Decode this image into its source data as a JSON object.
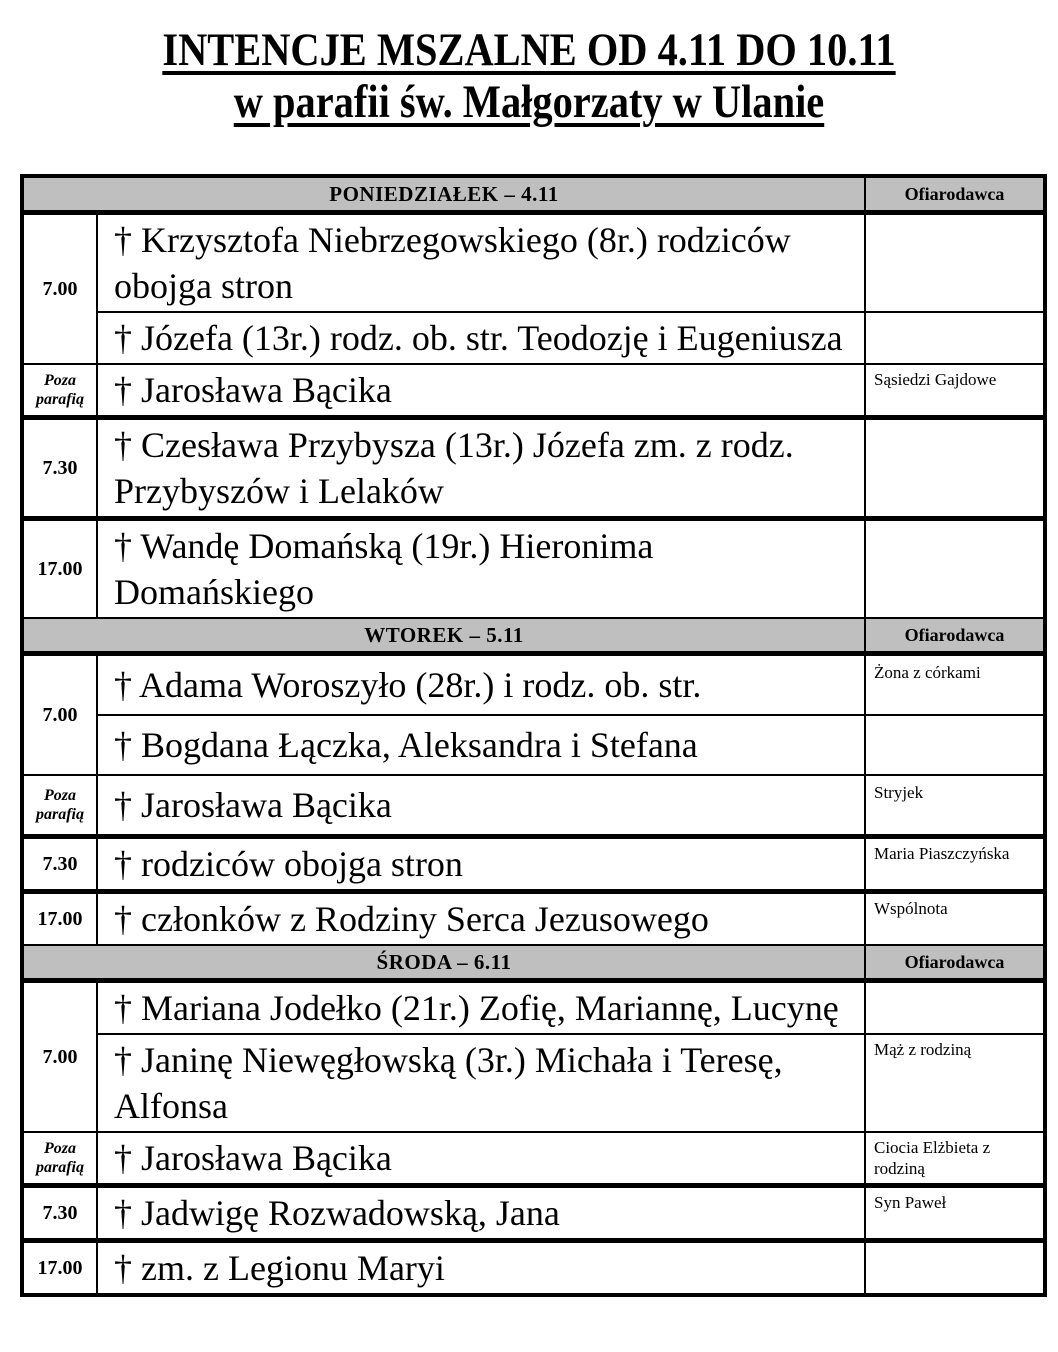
{
  "colors": {
    "header_bg": "#bfbfbf",
    "text": "#000000",
    "border": "#000000"
  },
  "title": {
    "line1": "INTENCJE MSZALNE OD 4.11 DO 10.11",
    "line2": "w parafii św. Małgorzaty w Ulanie"
  },
  "table": {
    "days": [
      {
        "label": "PONIEDZIAŁEK – 4.11",
        "donor_header": "Ofiarodawca",
        "rows": [
          {
            "time": "7.00",
            "intention": "† Krzysztofa Niebrzegowskiego (8r.) rodziców obojga stron",
            "donor": ""
          },
          {
            "intention": "† Józefa (13r.) rodz. ob. str. Teodozję i Eugeniusza",
            "donor": ""
          },
          {
            "time": "Poza parafią",
            "intention": "† Jarosława Bącika",
            "donor": "Sąsiedzi Gajdowe"
          },
          {
            "time": "7.30",
            "intention": "† Czesława Przybysza (13r.) Józefa zm. z rodz. Przybyszów i Lelaków",
            "donor": ""
          },
          {
            "time": "17.00",
            "intention": "† Wandę Domańską (19r.) Hieronima Domańskiego",
            "donor": ""
          }
        ]
      },
      {
        "label": "WTOREK – 5.11",
        "donor_header": "Ofiarodawca",
        "rows": [
          {
            "time": "7.00",
            "intention": "† Adama Woroszyło (28r.) i rodz. ob. str.",
            "donor": "Żona z córkami"
          },
          {
            "intention": "† Bogdana Łączka, Aleksandra i Stefana",
            "donor": ""
          },
          {
            "time": "Poza parafią",
            "intention": "† Jarosława Bącika",
            "donor": "Stryjek"
          },
          {
            "time": "7.30",
            "intention": "† rodziców obojga stron",
            "donor": "Maria Piaszczyńska"
          },
          {
            "time": "17.00",
            "intention": "† członków z Rodziny Serca Jezusowego",
            "donor": "Wspólnota"
          }
        ]
      },
      {
        "label": "ŚRODA – 6.11",
        "donor_header": "Ofiarodawca",
        "rows": [
          {
            "time": "7.00",
            "intention": "† Mariana Jodełko (21r.) Zofię, Mariannę, Lucynę",
            "donor": ""
          },
          {
            "intention": "† Janinę Niewęgłowską (3r.) Michała i Teresę, Alfonsa",
            "donor": "Mąż z rodziną"
          },
          {
            "time": "Poza parafią",
            "intention": "† Jarosława Bącika",
            "donor": "Ciocia Elżbieta z rodziną"
          },
          {
            "time": "7.30",
            "intention": "† Jadwigę Rozwadowską, Jana",
            "donor": "Syn Paweł"
          },
          {
            "time": "17.00",
            "intention": "† zm. z Legionu Maryi",
            "donor": ""
          }
        ]
      }
    ]
  }
}
